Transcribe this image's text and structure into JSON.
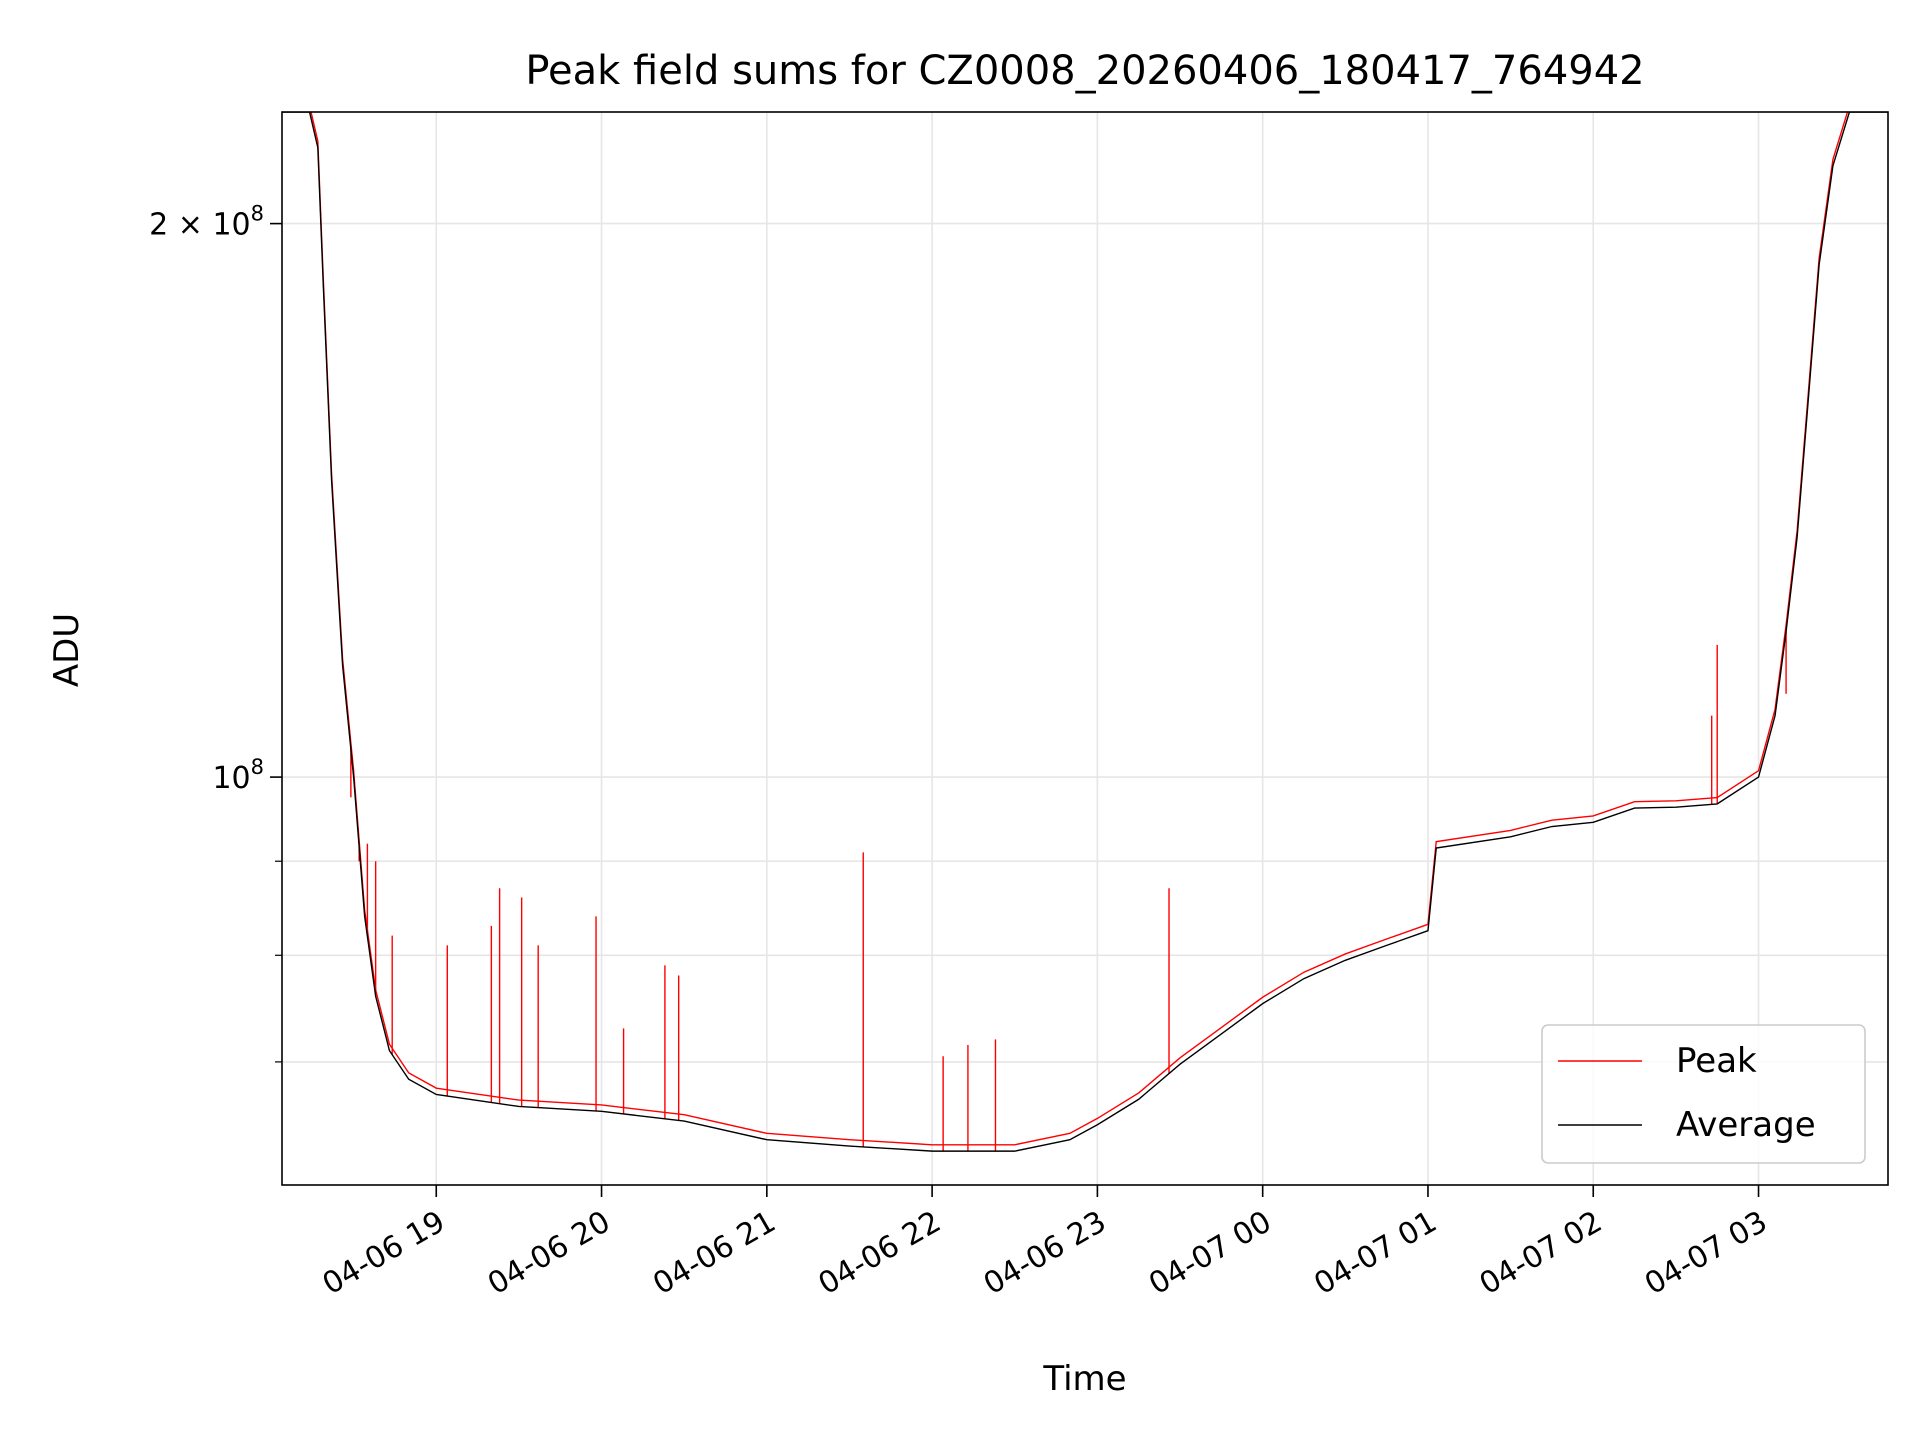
{
  "chart_data": {
    "type": "line",
    "title": "Peak field sums for CZ0008_20260406_180417_764942",
    "xlabel": "Time",
    "ylabel": "ADU",
    "y_scale": "log",
    "x_axis": {
      "ticks": [
        {
          "label": "04-06 19",
          "time": "2026-04-06 19:00"
        },
        {
          "label": "04-06 20",
          "time": "2026-04-06 20:00"
        },
        {
          "label": "04-06 21",
          "time": "2026-04-06 21:00"
        },
        {
          "label": "04-06 22",
          "time": "2026-04-06 22:00"
        },
        {
          "label": "04-06 23",
          "time": "2026-04-06 23:00"
        },
        {
          "label": "04-07 00",
          "time": "2026-04-07 00:00"
        },
        {
          "label": "04-07 01",
          "time": "2026-04-07 01:00"
        },
        {
          "label": "04-07 02",
          "time": "2026-04-07 02:00"
        },
        {
          "label": "04-07 03",
          "time": "2026-04-07 03:00"
        }
      ],
      "range": [
        "2026-04-06 18:04",
        "2026-04-07 03:47"
      ]
    },
    "y_axis": {
      "range": [
        60000000,
        230000000
      ],
      "major_ticks": [
        {
          "value": 100000000,
          "label_base": "10",
          "label_exp": "8",
          "label_coef": ""
        },
        {
          "value": 200000000,
          "label_base": "10",
          "label_exp": "8",
          "label_coef": "2 × "
        }
      ],
      "minor_ticks": [
        70000000,
        80000000,
        90000000
      ]
    },
    "grid": true,
    "legend": {
      "placement": "lower-right",
      "entries": [
        {
          "label": "Peak",
          "color": "#ff0000"
        },
        {
          "label": "Average",
          "color": "#000000"
        }
      ]
    },
    "series": [
      {
        "name": "Average",
        "color": "#000000",
        "points": [
          [
            "2026-04-06 18:04",
            230000000
          ],
          [
            "2026-04-06 18:14",
            230000000
          ],
          [
            "2026-04-06 18:17",
            220000000
          ],
          [
            "2026-04-06 18:19",
            185000000
          ],
          [
            "2026-04-06 18:22",
            145000000
          ],
          [
            "2026-04-06 18:26",
            115000000
          ],
          [
            "2026-04-06 18:30",
            100000000
          ],
          [
            "2026-04-06 18:34",
            84000000
          ],
          [
            "2026-04-06 18:38",
            76000000
          ],
          [
            "2026-04-06 18:43",
            71000000
          ],
          [
            "2026-04-06 18:50",
            68500000
          ],
          [
            "2026-04-06 19:00",
            67200000
          ],
          [
            "2026-04-06 19:30",
            66200000
          ],
          [
            "2026-04-06 20:00",
            65800000
          ],
          [
            "2026-04-06 20:30",
            65000000
          ],
          [
            "2026-04-06 21:00",
            63500000
          ],
          [
            "2026-04-06 21:30",
            63000000
          ],
          [
            "2026-04-06 22:00",
            62600000
          ],
          [
            "2026-04-06 22:30",
            62600000
          ],
          [
            "2026-04-06 22:50",
            63500000
          ],
          [
            "2026-04-06 23:00",
            64700000
          ],
          [
            "2026-04-06 23:15",
            66800000
          ],
          [
            "2026-04-06 23:30",
            69800000
          ],
          [
            "2026-04-06 23:45",
            72500000
          ],
          [
            "2026-04-07 00:00",
            75300000
          ],
          [
            "2026-04-07 00:15",
            77700000
          ],
          [
            "2026-04-07 00:30",
            79500000
          ],
          [
            "2026-04-07 00:45",
            81000000
          ],
          [
            "2026-04-07 01:00",
            82500000
          ],
          [
            "2026-04-07 01:03",
            91500000
          ],
          [
            "2026-04-07 01:30",
            92800000
          ],
          [
            "2026-04-07 01:45",
            94000000
          ],
          [
            "2026-04-07 02:00",
            94500000
          ],
          [
            "2026-04-07 02:15",
            96200000
          ],
          [
            "2026-04-07 02:30",
            96300000
          ],
          [
            "2026-04-07 02:45",
            96700000
          ],
          [
            "2026-04-07 03:00",
            100000000
          ],
          [
            "2026-04-07 03:06",
            108000000
          ],
          [
            "2026-04-07 03:10",
            120000000
          ],
          [
            "2026-04-07 03:14",
            135000000
          ],
          [
            "2026-04-07 03:18",
            160000000
          ],
          [
            "2026-04-07 03:22",
            190000000
          ],
          [
            "2026-04-07 03:27",
            215000000
          ],
          [
            "2026-04-07 03:33",
            230000000
          ],
          [
            "2026-04-07 03:47",
            230000000
          ]
        ]
      },
      {
        "name": "Peak",
        "color": "#ff0000",
        "spikes": [
          [
            "2026-04-06 18:29",
            97500000
          ],
          [
            "2026-04-06 18:32",
            90000000
          ],
          [
            "2026-04-06 18:35",
            92000000
          ],
          [
            "2026-04-06 18:38",
            90000000
          ],
          [
            "2026-04-06 18:44",
            82000000
          ],
          [
            "2026-04-06 19:04",
            81000000
          ],
          [
            "2026-04-06 19:20",
            83000000
          ],
          [
            "2026-04-06 19:23",
            87000000
          ],
          [
            "2026-04-06 19:31",
            86000000
          ],
          [
            "2026-04-06 19:37",
            81000000
          ],
          [
            "2026-04-06 19:58",
            84000000
          ],
          [
            "2026-04-06 20:08",
            73000000
          ],
          [
            "2026-04-06 20:23",
            79000000
          ],
          [
            "2026-04-06 20:28",
            78000000
          ],
          [
            "2026-04-06 21:35",
            91000000
          ],
          [
            "2026-04-06 22:04",
            70500000
          ],
          [
            "2026-04-06 22:13",
            71500000
          ],
          [
            "2026-04-06 22:23",
            72000000
          ],
          [
            "2026-04-06 23:26",
            87000000
          ],
          [
            "2026-04-07 02:45",
            118000000
          ],
          [
            "2026-04-07 02:43",
            108000000
          ],
          [
            "2026-04-07 03:10",
            111000000
          ]
        ]
      }
    ]
  }
}
